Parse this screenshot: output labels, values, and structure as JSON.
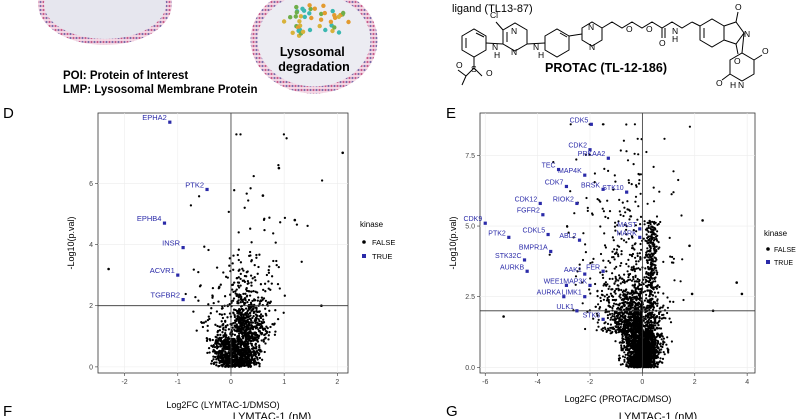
{
  "top_left": {
    "vesicle_label": "Lysosomal\ndegradation",
    "legend_lines": [
      "POI: Protein of Interest",
      "LMP: Lysosomal Membrane Protein"
    ]
  },
  "top_right": {
    "ligand_label": "ligand (TL13-87)",
    "protac_label": "PROTAC (TL-12-186)",
    "atoms": [
      "Cl",
      "N",
      "N",
      "N",
      "N",
      "N",
      "H",
      "O",
      "O",
      "O",
      "N",
      "H",
      "N",
      "N",
      "S",
      "O",
      "O",
      "H",
      "O",
      "O",
      "O",
      "O",
      "N",
      "H"
    ]
  },
  "panel_letters": {
    "d": "D",
    "e": "E",
    "f": "F",
    "g": "G"
  },
  "bottom_labels": {
    "f": "LYMTAC-1 (nM)",
    "g": "LYMTAC-1 (nM)"
  },
  "colors": {
    "kinase_true": "#2a2aa8",
    "kinase_false": "#000000",
    "vesicle_fill": "#e9e9ef",
    "membrane": "#c45a8a"
  },
  "chart_data": [
    {
      "type": "scatter",
      "panel": "D",
      "xlabel": "Log2FC (LYMTAC-1/DMSO)",
      "ylabel": "-Log10(p.val)",
      "xlim": [
        -2.5,
        2.2
      ],
      "ylim": [
        -0.2,
        8.3
      ],
      "xticks": [
        -2,
        -1,
        0,
        1,
        2
      ],
      "yticks": [
        0,
        2,
        4,
        6
      ],
      "hline": 2,
      "vline": 0,
      "legend": {
        "title": "kinase",
        "entries": [
          "FALSE",
          "TRUE"
        ],
        "position": "right"
      },
      "labeled_points": [
        {
          "name": "EPHA2",
          "x": -1.15,
          "y": 8.0
        },
        {
          "name": "PTK2",
          "x": -0.45,
          "y": 5.8
        },
        {
          "name": "EPHB4",
          "x": -1.25,
          "y": 4.7
        },
        {
          "name": "INSR",
          "x": -0.9,
          "y": 3.9
        },
        {
          "name": "ACVR1",
          "x": -1.0,
          "y": 3.0
        },
        {
          "name": "TGFBR2",
          "x": -0.9,
          "y": 2.2
        }
      ]
    },
    {
      "type": "scatter",
      "panel": "E",
      "xlabel": "Log2FC (PROTAC/DMSO)",
      "ylabel": "-Log10(p.val)",
      "xlim": [
        -6.2,
        4.3
      ],
      "ylim": [
        -0.2,
        9.0
      ],
      "xticks": [
        -6,
        -4,
        -2,
        0,
        2,
        4
      ],
      "yticks": [
        0.0,
        2.5,
        5.0,
        7.5
      ],
      "hline": 2.0,
      "vline": 0,
      "legend": {
        "title": "kinase",
        "entries": [
          "FALSE",
          "TRUE"
        ],
        "position": "right"
      },
      "labeled_points": [
        {
          "name": "CDK5",
          "x": -1.95,
          "y": 8.6
        },
        {
          "name": "CDK2",
          "x": -2.0,
          "y": 7.7
        },
        {
          "name": "PRKAA2",
          "x": -1.3,
          "y": 7.4
        },
        {
          "name": "TEC",
          "x": -3.2,
          "y": 7.0
        },
        {
          "name": "MAP4K",
          "x": -2.2,
          "y": 6.8
        },
        {
          "name": "CDK7",
          "x": -2.9,
          "y": 6.4
        },
        {
          "name": "BRSK",
          "x": -1.5,
          "y": 6.3
        },
        {
          "name": "STK10",
          "x": -0.6,
          "y": 6.2
        },
        {
          "name": "CDK12",
          "x": -3.9,
          "y": 5.8
        },
        {
          "name": "RIOK2",
          "x": -2.5,
          "y": 5.8
        },
        {
          "name": "CDK9",
          "x": -6.0,
          "y": 5.1
        },
        {
          "name": "FGFR2",
          "x": -3.8,
          "y": 5.4
        },
        {
          "name": "MAST",
          "x": -0.1,
          "y": 4.9
        },
        {
          "name": "PTK2",
          "x": -5.1,
          "y": 4.6
        },
        {
          "name": "CDKL5",
          "x": -3.6,
          "y": 4.7
        },
        {
          "name": "ABL2",
          "x": -2.4,
          "y": 4.5
        },
        {
          "name": "MARK",
          "x": -0.1,
          "y": 4.6
        },
        {
          "name": "BMPR1A",
          "x": -3.5,
          "y": 4.1
        },
        {
          "name": "STK32C",
          "x": -4.5,
          "y": 3.8
        },
        {
          "name": "AURKB",
          "x": -4.4,
          "y": 3.4
        },
        {
          "name": "AAK1",
          "x": -2.2,
          "y": 3.3
        },
        {
          "name": "FER",
          "x": -1.5,
          "y": 3.4
        },
        {
          "name": "WEE1",
          "x": -2.9,
          "y": 2.9
        },
        {
          "name": "MAP3K",
          "x": -2.0,
          "y": 2.9
        },
        {
          "name": "AURKA",
          "x": -3.0,
          "y": 2.5
        },
        {
          "name": "LIMK1",
          "x": -2.2,
          "y": 2.5
        },
        {
          "name": "ULK1",
          "x": -2.5,
          "y": 2.0
        },
        {
          "name": "STK3",
          "x": -1.5,
          "y": 1.7
        }
      ]
    }
  ]
}
